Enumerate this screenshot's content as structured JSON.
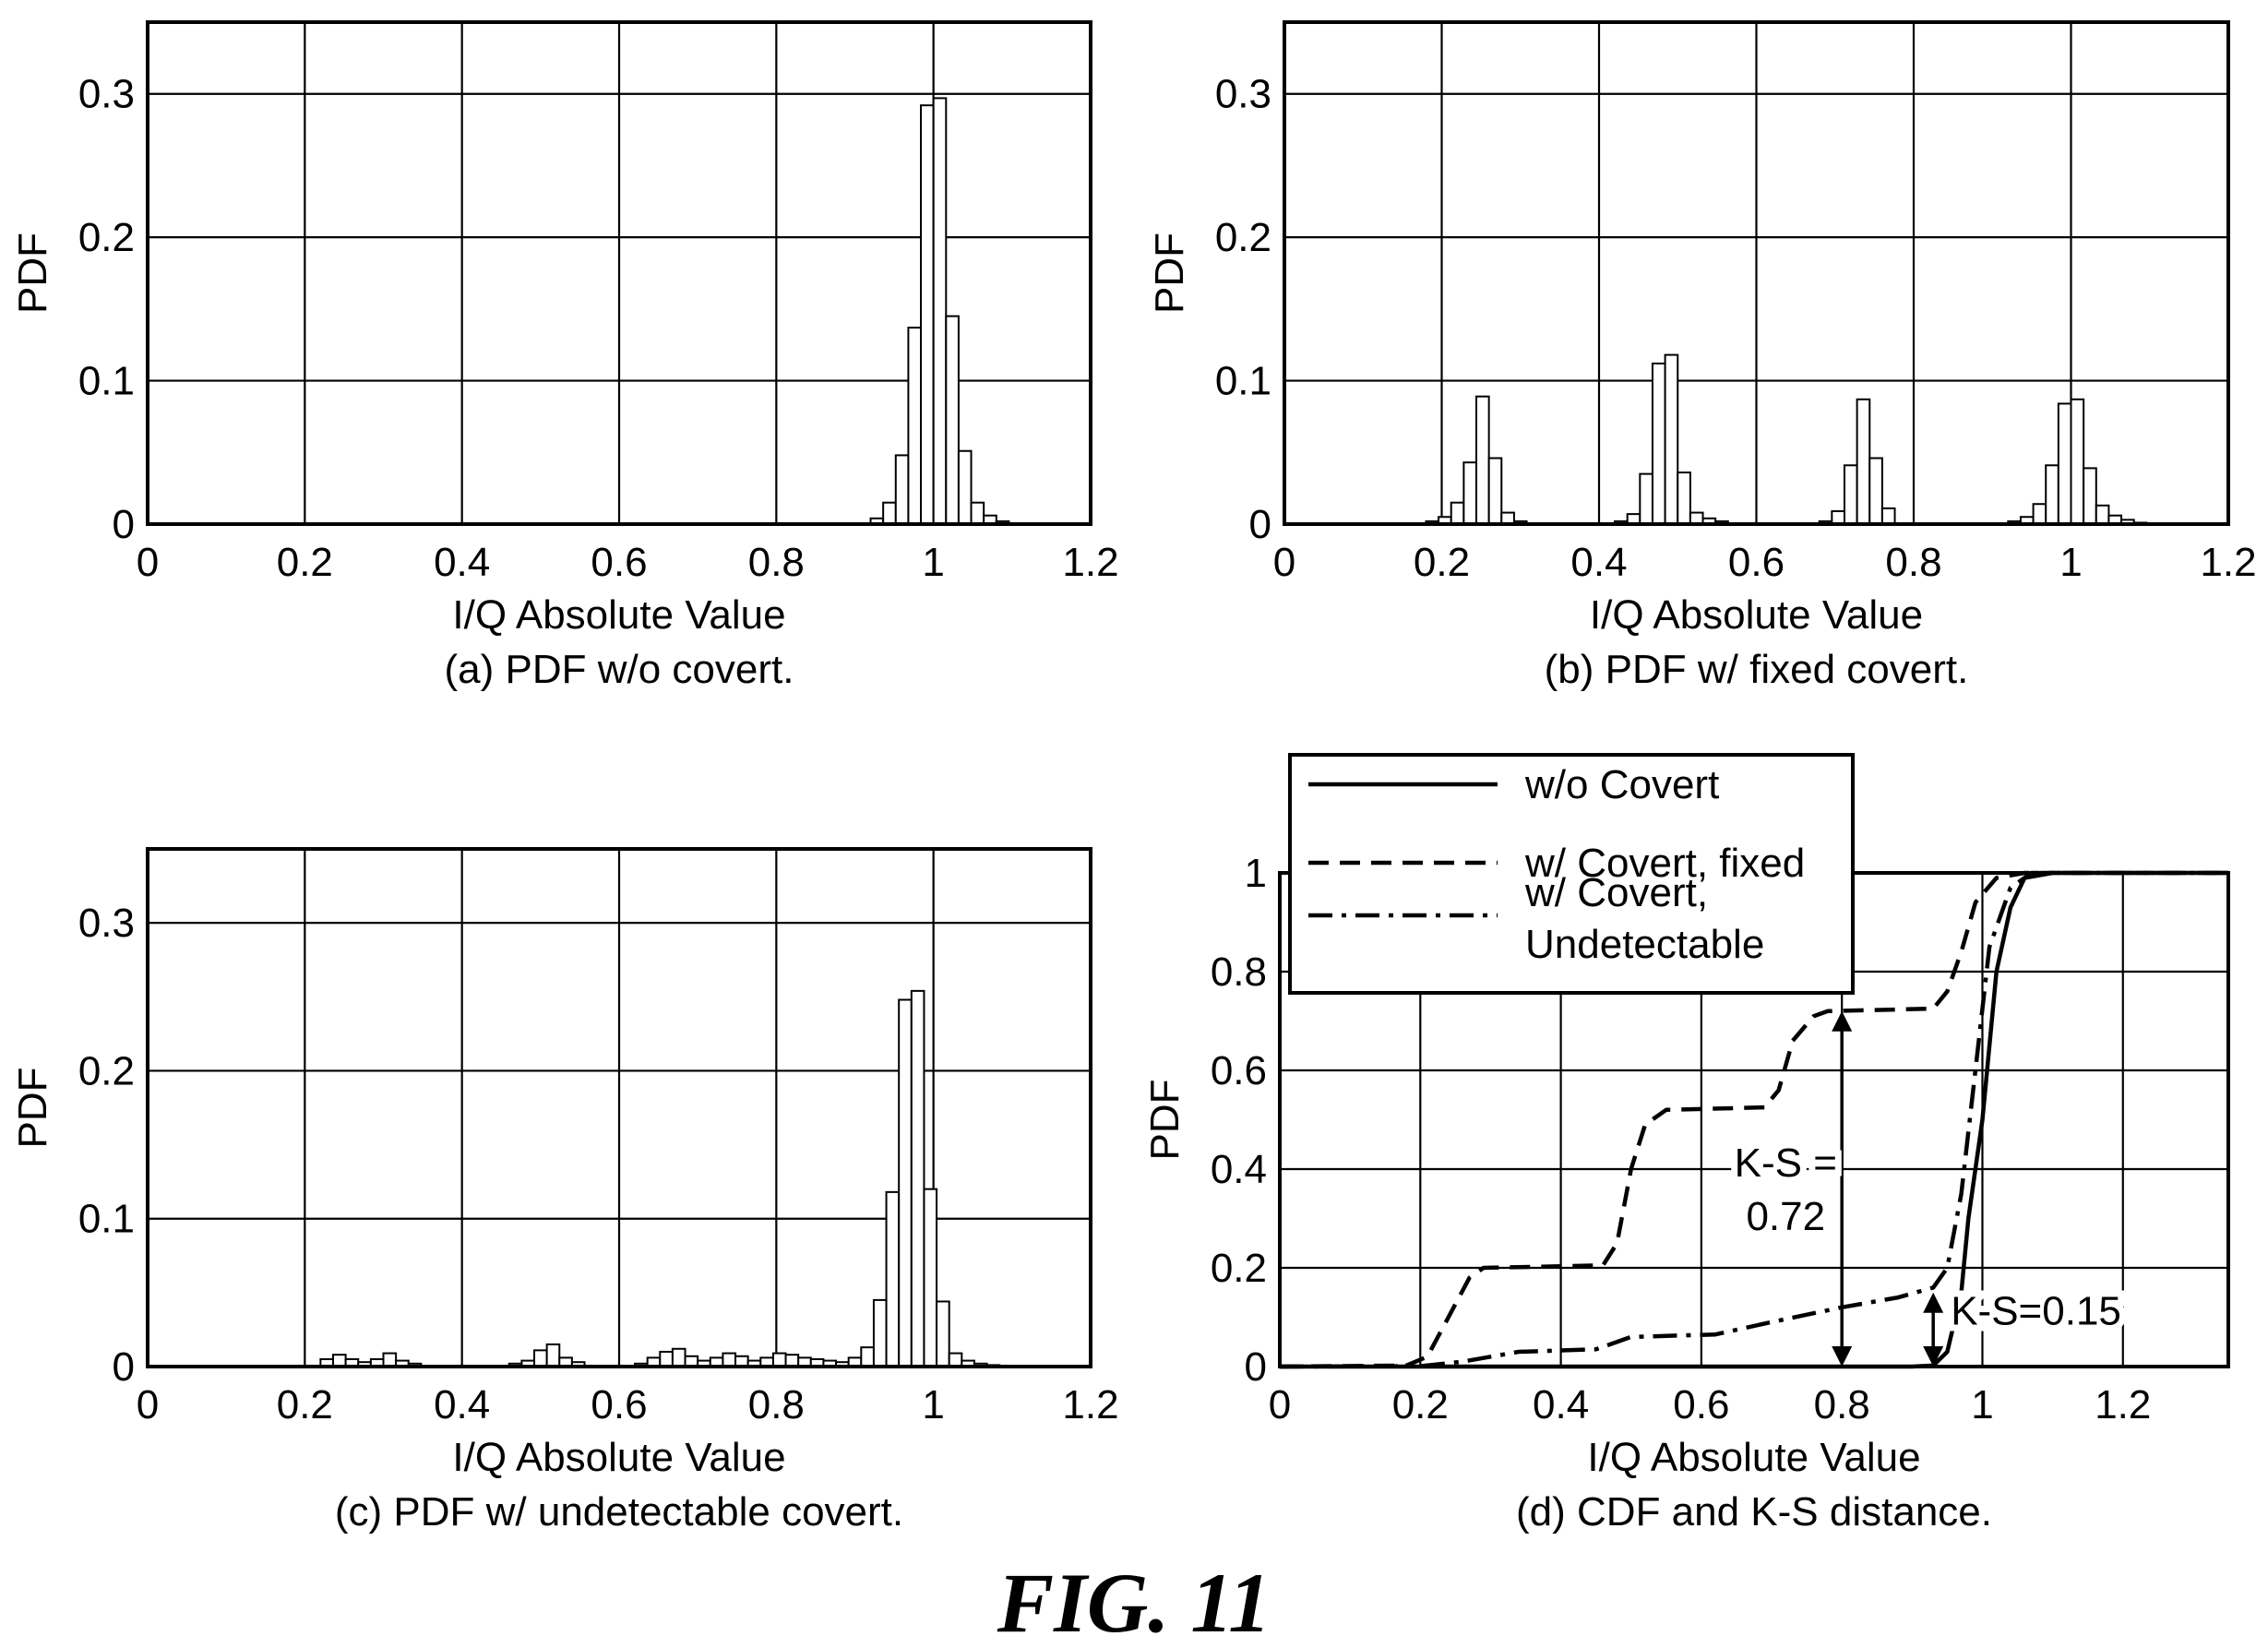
{
  "figure_title": "FIG. 11",
  "chart_data": [
    {
      "id": "a",
      "type": "bar",
      "caption": "(a) PDF w/o covert.",
      "xlabel": "I/Q Absolute Value",
      "ylabel": "PDF",
      "xlim": [
        0,
        1.2
      ],
      "ylim": [
        0,
        0.35
      ],
      "xticks": [
        "0",
        "0.2",
        "0.4",
        "0.6",
        "0.8",
        "1",
        "1.2"
      ],
      "yticks": [
        "0",
        "0.1",
        "0.2",
        "0.3"
      ],
      "grid": true,
      "bin_width": 0.016,
      "bins": [
        {
          "x": 0.92,
          "y": 0.004
        },
        {
          "x": 0.936,
          "y": 0.015
        },
        {
          "x": 0.952,
          "y": 0.048
        },
        {
          "x": 0.968,
          "y": 0.137
        },
        {
          "x": 0.984,
          "y": 0.292
        },
        {
          "x": 1.0,
          "y": 0.297
        },
        {
          "x": 1.016,
          "y": 0.145
        },
        {
          "x": 1.032,
          "y": 0.051
        },
        {
          "x": 1.048,
          "y": 0.015
        },
        {
          "x": 1.064,
          "y": 0.006
        },
        {
          "x": 1.08,
          "y": 0.002
        }
      ]
    },
    {
      "id": "b",
      "type": "bar",
      "caption": "(b) PDF w/ fixed covert.",
      "xlabel": "I/Q Absolute Value",
      "ylabel": "PDF",
      "xlim": [
        0,
        1.2
      ],
      "ylim": [
        0,
        0.35
      ],
      "xticks": [
        "0",
        "0.2",
        "0.4",
        "0.6",
        "0.8",
        "1",
        "1.2"
      ],
      "yticks": [
        "0",
        "0.1",
        "0.2",
        "0.3"
      ],
      "grid": true,
      "bin_width": 0.016,
      "bins": [
        {
          "x": 0.18,
          "y": 0.002
        },
        {
          "x": 0.196,
          "y": 0.005
        },
        {
          "x": 0.212,
          "y": 0.015
        },
        {
          "x": 0.228,
          "y": 0.043
        },
        {
          "x": 0.244,
          "y": 0.089
        },
        {
          "x": 0.26,
          "y": 0.046
        },
        {
          "x": 0.276,
          "y": 0.008
        },
        {
          "x": 0.292,
          "y": 0.002
        },
        {
          "x": 0.42,
          "y": 0.002
        },
        {
          "x": 0.436,
          "y": 0.007
        },
        {
          "x": 0.452,
          "y": 0.035
        },
        {
          "x": 0.468,
          "y": 0.112
        },
        {
          "x": 0.484,
          "y": 0.118
        },
        {
          "x": 0.5,
          "y": 0.036
        },
        {
          "x": 0.516,
          "y": 0.008
        },
        {
          "x": 0.532,
          "y": 0.004
        },
        {
          "x": 0.548,
          "y": 0.002
        },
        {
          "x": 0.68,
          "y": 0.002
        },
        {
          "x": 0.696,
          "y": 0.009
        },
        {
          "x": 0.712,
          "y": 0.041
        },
        {
          "x": 0.728,
          "y": 0.087
        },
        {
          "x": 0.744,
          "y": 0.046
        },
        {
          "x": 0.76,
          "y": 0.011
        },
        {
          "x": 0.92,
          "y": 0.002
        },
        {
          "x": 0.936,
          "y": 0.005
        },
        {
          "x": 0.952,
          "y": 0.014
        },
        {
          "x": 0.968,
          "y": 0.041
        },
        {
          "x": 0.984,
          "y": 0.084
        },
        {
          "x": 1.0,
          "y": 0.087
        },
        {
          "x": 1.016,
          "y": 0.039
        },
        {
          "x": 1.032,
          "y": 0.013
        },
        {
          "x": 1.048,
          "y": 0.006
        },
        {
          "x": 1.064,
          "y": 0.003
        },
        {
          "x": 1.08,
          "y": 0.001
        }
      ]
    },
    {
      "id": "c",
      "type": "bar",
      "caption": "(c) PDF w/ undetectable covert.",
      "xlabel": "I/Q Absolute Value",
      "ylabel": "PDF",
      "xlim": [
        0,
        1.2
      ],
      "ylim": [
        0,
        0.35
      ],
      "xticks": [
        "0",
        "0.2",
        "0.4",
        "0.6",
        "0.8",
        "1",
        "1.2"
      ],
      "yticks": [
        "0",
        "0.1",
        "0.2",
        "0.3"
      ],
      "grid": true,
      "bin_width": 0.016,
      "bins": [
        {
          "x": 0.22,
          "y": 0.005
        },
        {
          "x": 0.236,
          "y": 0.008
        },
        {
          "x": 0.252,
          "y": 0.005
        },
        {
          "x": 0.268,
          "y": 0.003
        },
        {
          "x": 0.284,
          "y": 0.005
        },
        {
          "x": 0.3,
          "y": 0.009
        },
        {
          "x": 0.316,
          "y": 0.004
        },
        {
          "x": 0.332,
          "y": 0.002
        },
        {
          "x": 0.46,
          "y": 0.002
        },
        {
          "x": 0.476,
          "y": 0.004
        },
        {
          "x": 0.492,
          "y": 0.011
        },
        {
          "x": 0.508,
          "y": 0.015
        },
        {
          "x": 0.524,
          "y": 0.006
        },
        {
          "x": 0.54,
          "y": 0.003
        },
        {
          "x": 0.62,
          "y": 0.002
        },
        {
          "x": 0.636,
          "y": 0.006
        },
        {
          "x": 0.652,
          "y": 0.01
        },
        {
          "x": 0.668,
          "y": 0.012
        },
        {
          "x": 0.684,
          "y": 0.007
        },
        {
          "x": 0.7,
          "y": 0.004
        },
        {
          "x": 0.716,
          "y": 0.006
        },
        {
          "x": 0.732,
          "y": 0.009
        },
        {
          "x": 0.748,
          "y": 0.007
        },
        {
          "x": 0.764,
          "y": 0.004
        },
        {
          "x": 0.78,
          "y": 0.006
        },
        {
          "x": 0.796,
          "y": 0.009
        },
        {
          "x": 0.812,
          "y": 0.008
        },
        {
          "x": 0.828,
          "y": 0.006
        },
        {
          "x": 0.844,
          "y": 0.005
        },
        {
          "x": 0.86,
          "y": 0.004
        },
        {
          "x": 0.876,
          "y": 0.003
        },
        {
          "x": 0.892,
          "y": 0.006
        },
        {
          "x": 0.908,
          "y": 0.013
        },
        {
          "x": 0.924,
          "y": 0.045
        },
        {
          "x": 0.94,
          "y": 0.118
        },
        {
          "x": 0.956,
          "y": 0.248
        },
        {
          "x": 0.972,
          "y": 0.254
        },
        {
          "x": 0.988,
          "y": 0.12
        },
        {
          "x": 1.004,
          "y": 0.044
        },
        {
          "x": 1.02,
          "y": 0.009
        },
        {
          "x": 1.036,
          "y": 0.004
        },
        {
          "x": 1.052,
          "y": 0.002
        },
        {
          "x": 1.068,
          "y": 0.001
        }
      ]
    },
    {
      "id": "d",
      "type": "line",
      "caption": "(d) CDF and K-S distance.",
      "xlabel": "I/Q Absolute Value",
      "ylabel": "PDF",
      "xlim": [
        0,
        1.35
      ],
      "ylim": [
        0,
        1.0
      ],
      "xticks": [
        "0",
        "0.2",
        "0.4",
        "0.6",
        "0.8",
        "1",
        "1.2"
      ],
      "yticks": [
        "0",
        "0.2",
        "0.4",
        "0.6",
        "0.8",
        "1"
      ],
      "grid": true,
      "legend_position": "top-left",
      "series": [
        {
          "name": "w/o Covert",
          "style": "solid",
          "points": [
            [
              0,
              0
            ],
            [
              0.9,
              0
            ],
            [
              0.93,
              0.002
            ],
            [
              0.95,
              0.03
            ],
            [
              0.97,
              0.15
            ],
            [
              0.98,
              0.3
            ],
            [
              1.0,
              0.5
            ],
            [
              1.01,
              0.65
            ],
            [
              1.02,
              0.8
            ],
            [
              1.04,
              0.93
            ],
            [
              1.06,
              0.99
            ],
            [
              1.1,
              1.0
            ],
            [
              1.35,
              1.0
            ]
          ]
        },
        {
          "name": "w/ Covert, fixed",
          "style": "dashed",
          "points": [
            [
              0,
              0
            ],
            [
              0.18,
              0.002
            ],
            [
              0.21,
              0.02
            ],
            [
              0.24,
              0.1
            ],
            [
              0.27,
              0.18
            ],
            [
              0.29,
              0.2
            ],
            [
              0.46,
              0.205
            ],
            [
              0.48,
              0.25
            ],
            [
              0.5,
              0.4
            ],
            [
              0.52,
              0.49
            ],
            [
              0.55,
              0.52
            ],
            [
              0.69,
              0.525
            ],
            [
              0.71,
              0.56
            ],
            [
              0.73,
              0.66
            ],
            [
              0.76,
              0.71
            ],
            [
              0.78,
              0.72
            ],
            [
              0.93,
              0.725
            ],
            [
              0.95,
              0.76
            ],
            [
              0.97,
              0.84
            ],
            [
              0.99,
              0.94
            ],
            [
              1.02,
              0.99
            ],
            [
              1.06,
              1.0
            ],
            [
              1.35,
              1.0
            ]
          ]
        },
        {
          "name": "w/ Covert, Undetectable",
          "style": "dashdot",
          "points": [
            [
              0,
              0
            ],
            [
              0.2,
              0.001
            ],
            [
              0.26,
              0.01
            ],
            [
              0.34,
              0.03
            ],
            [
              0.45,
              0.035
            ],
            [
              0.5,
              0.06
            ],
            [
              0.62,
              0.065
            ],
            [
              0.7,
              0.09
            ],
            [
              0.8,
              0.12
            ],
            [
              0.88,
              0.14
            ],
            [
              0.93,
              0.16
            ],
            [
              0.95,
              0.2
            ],
            [
              0.97,
              0.35
            ],
            [
              0.99,
              0.6
            ],
            [
              1.01,
              0.85
            ],
            [
              1.04,
              0.97
            ],
            [
              1.07,
              1.0
            ],
            [
              1.35,
              1.0
            ]
          ]
        }
      ],
      "annotations": [
        {
          "text_lines": [
            "K-S =",
            "0.72"
          ],
          "x": 0.8,
          "y_from": 0.0,
          "y_to": 0.72
        },
        {
          "text": "K-S=0.15",
          "x": 0.93,
          "y_from": 0.0,
          "y_to": 0.15
        }
      ]
    }
  ]
}
